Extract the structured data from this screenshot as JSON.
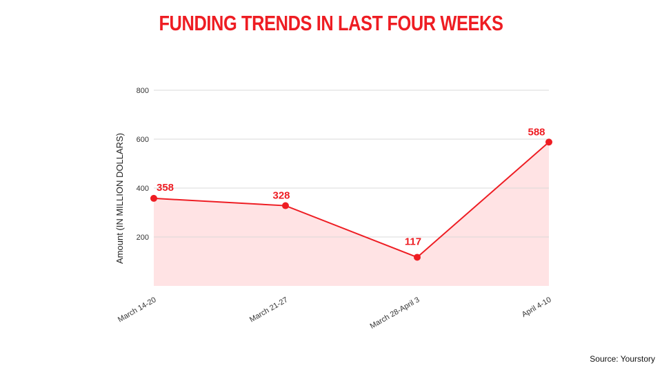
{
  "title": "FUNDING TRENDS IN LAST FOUR WEEKS",
  "source": "Source: Yourstory",
  "chart_data": {
    "type": "area",
    "title": "FUNDING TRENDS IN LAST FOUR WEEKS",
    "xlabel": "",
    "ylabel": "Amount (IN MILLION DOLLARS)",
    "categories": [
      "March 14-20",
      "March 21-27",
      "March 28-April 3",
      "April 4-10"
    ],
    "series": [
      {
        "values": [
          358,
          328,
          117,
          588
        ]
      }
    ],
    "data_labels": [
      "358",
      "328",
      "117",
      "588"
    ],
    "ylim": [
      0,
      800
    ],
    "yticks": [
      200,
      400,
      600,
      800
    ],
    "grid": true,
    "legend": "none",
    "colors": {
      "line": "#ee1d23",
      "fill": "#ffe3e4",
      "grid": "#d9d9d9",
      "title": "#ee1d23"
    }
  }
}
